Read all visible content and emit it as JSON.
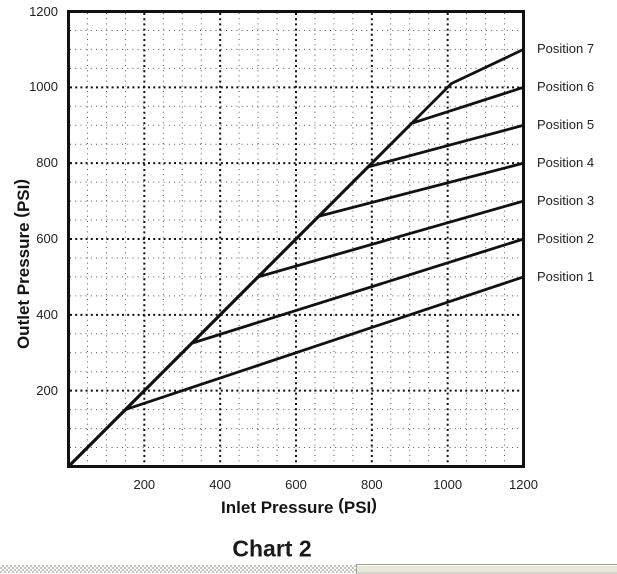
{
  "chart_data": {
    "type": "line",
    "title": "Chart 2",
    "xlabel": "Inlet Pressure (PSI)",
    "ylabel": "Outlet Pressure (PSI)",
    "xlim": [
      0,
      1200
    ],
    "ylim": [
      0,
      1200
    ],
    "xticks": [
      200,
      400,
      600,
      800,
      1000,
      1200
    ],
    "yticks": [
      200,
      400,
      600,
      800,
      1000,
      1200
    ],
    "grid": {
      "minor_step": 50,
      "major_step": 200,
      "style": "dotted",
      "minor_color": "#555555",
      "major_color": "#111111"
    },
    "line_color": "#111111",
    "border_color": "#111111",
    "legend_position": "right-labels",
    "series": [
      {
        "name": "Position 7",
        "points": [
          [
            0,
            0
          ],
          [
            1010,
            1010
          ],
          [
            1200,
            1100
          ]
        ]
      },
      {
        "name": "Position 6",
        "points": [
          [
            0,
            0
          ],
          [
            905,
            905
          ],
          [
            1200,
            1000
          ]
        ]
      },
      {
        "name": "Position 5",
        "points": [
          [
            0,
            0
          ],
          [
            790,
            790
          ],
          [
            1200,
            900
          ]
        ]
      },
      {
        "name": "Position 4",
        "points": [
          [
            0,
            0
          ],
          [
            660,
            660
          ],
          [
            1200,
            800
          ]
        ]
      },
      {
        "name": "Position 3",
        "points": [
          [
            0,
            0
          ],
          [
            500,
            500
          ],
          [
            1200,
            700
          ]
        ]
      },
      {
        "name": "Position 2",
        "points": [
          [
            0,
            0
          ],
          [
            325,
            325
          ],
          [
            1200,
            600
          ]
        ]
      },
      {
        "name": "Position 1",
        "points": [
          [
            0,
            0
          ],
          [
            150,
            150
          ],
          [
            1200,
            500
          ]
        ]
      }
    ]
  }
}
